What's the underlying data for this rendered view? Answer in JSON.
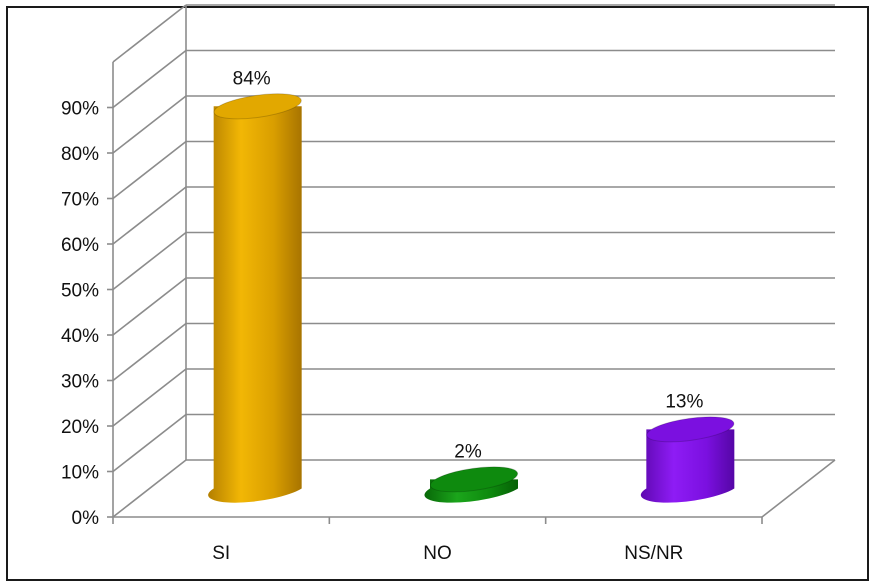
{
  "chart_data": {
    "type": "bar",
    "style": "3d-cylinder",
    "categories": [
      "SI",
      "NO",
      "NS/NR"
    ],
    "values": [
      84,
      2,
      13
    ],
    "data_labels": [
      "84%",
      "2%",
      "13%"
    ],
    "colors": [
      "#E2A800",
      "#0E8A0E",
      "#7B10E0"
    ],
    "ylim": [
      0,
      90
    ],
    "yticks": [
      0,
      10,
      20,
      30,
      40,
      50,
      60,
      70,
      80,
      90
    ],
    "ytick_labels": [
      "0%",
      "10%",
      "20%",
      "30%",
      "40%",
      "50%",
      "60%",
      "70%",
      "80%",
      "90%"
    ],
    "title": "",
    "xlabel": "",
    "ylabel": "",
    "grid": true,
    "legend": "none"
  }
}
